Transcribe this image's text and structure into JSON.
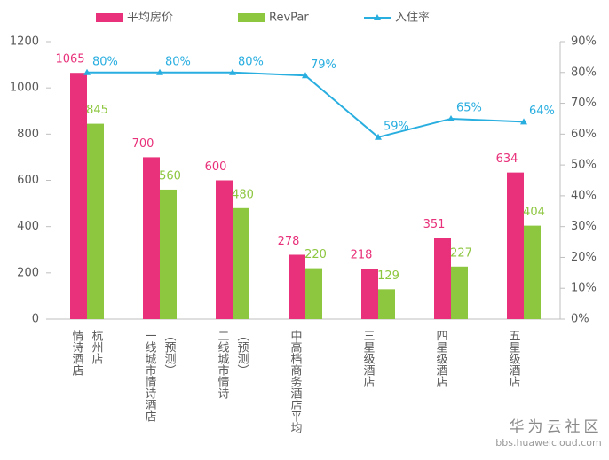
{
  "chart_data": {
    "type": "bar-line",
    "categories": [
      [
        "情诗酒店",
        "杭州店"
      ],
      [
        "一线城市情诗酒店",
        "（预测）"
      ],
      [
        "二线城市情诗",
        "（预测）"
      ],
      [
        "中高档商务酒店平均"
      ],
      [
        "三星级酒店"
      ],
      [
        "四星级酒店"
      ],
      [
        "五星级酒店"
      ]
    ],
    "series": [
      {
        "name": "平均房价",
        "color": "#e8317a",
        "type": "bar",
        "values": [
          1065,
          700,
          600,
          278,
          218,
          351,
          634
        ]
      },
      {
        "name": "RevPar",
        "color": "#8dc63f",
        "type": "bar",
        "values": [
          845,
          560,
          480,
          220,
          129,
          227,
          404
        ]
      },
      {
        "name": "入住率",
        "color": "#29aee0",
        "type": "line",
        "axis": "y2",
        "values": [
          80,
          80,
          80,
          79,
          59,
          65,
          64
        ],
        "value_labels": [
          "80%",
          "80%",
          "80%",
          "79%",
          "59%",
          "65%",
          "64%"
        ]
      }
    ],
    "ylim": [
      0,
      1200
    ],
    "yticks": [
      0,
      200,
      400,
      600,
      800,
      1000,
      1200
    ],
    "y2lim": [
      0,
      90
    ],
    "y2ticks": [
      {
        "value": 0,
        "label": "0%"
      },
      {
        "value": 10,
        "label": "10%"
      },
      {
        "value": 20,
        "label": "20%"
      },
      {
        "value": 30,
        "label": "30%"
      },
      {
        "value": 40,
        "label": "40%"
      },
      {
        "value": 50,
        "label": "50%"
      },
      {
        "value": 60,
        "label": "60%"
      },
      {
        "value": 70,
        "label": "70%"
      },
      {
        "value": 80,
        "label": "80%"
      },
      {
        "value": 90,
        "label": "90%"
      }
    ],
    "legend": "top",
    "grid": false
  },
  "watermark": {
    "title": "华为云社区",
    "url": "bbs.huaweicloud.com"
  }
}
